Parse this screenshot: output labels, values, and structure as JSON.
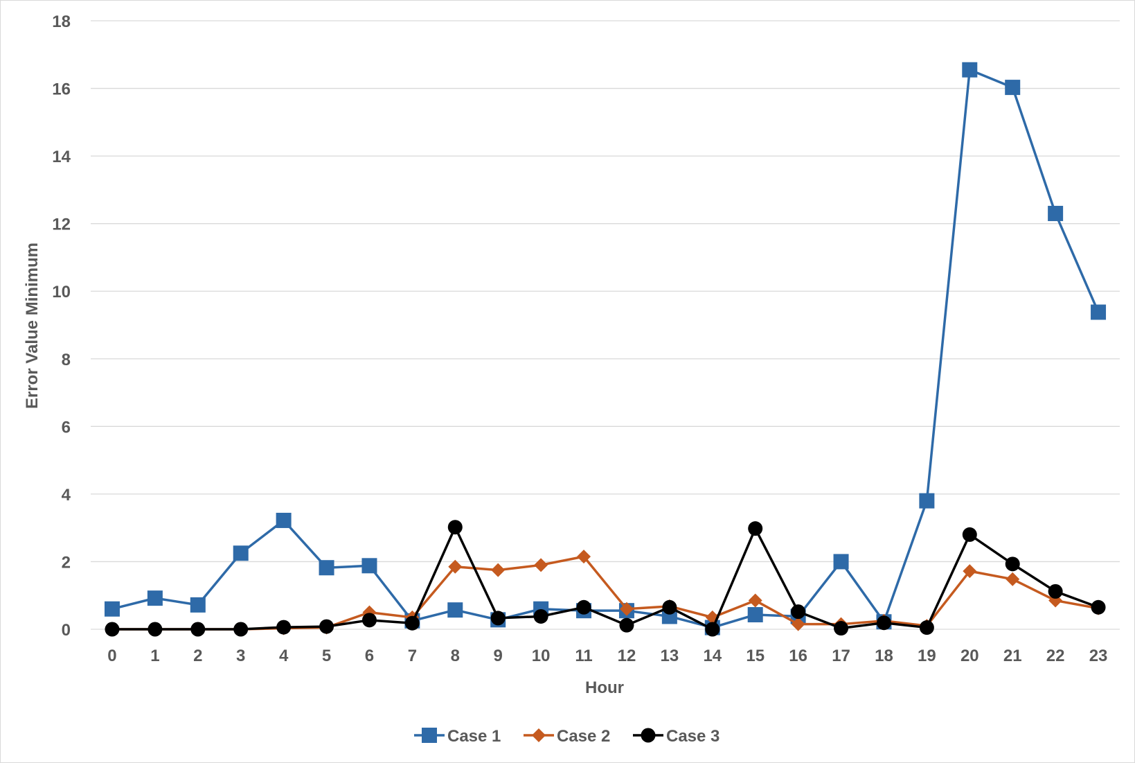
{
  "chart_data": {
    "type": "line",
    "title": "",
    "xlabel": "Hour",
    "ylabel": "Error Value Minimum",
    "categories": [
      "0",
      "1",
      "2",
      "3",
      "4",
      "5",
      "6",
      "7",
      "8",
      "9",
      "10",
      "11",
      "12",
      "13",
      "14",
      "15",
      "16",
      "17",
      "18",
      "19",
      "20",
      "21",
      "22",
      "23"
    ],
    "ylim": [
      0,
      18
    ],
    "yticks": [
      0,
      2,
      4,
      6,
      8,
      10,
      12,
      14,
      16,
      18
    ],
    "grid": true,
    "legend_position": "bottom",
    "series": [
      {
        "name": "Case 1",
        "color": "#2e6aa8",
        "marker": "square",
        "values": [
          0.6,
          0.92,
          0.72,
          2.25,
          3.22,
          1.82,
          1.88,
          0.25,
          0.57,
          0.28,
          0.6,
          0.55,
          0.55,
          0.38,
          0.05,
          0.43,
          0.38,
          2.0,
          0.22,
          3.8,
          16.55,
          16.03,
          12.3,
          9.38
        ]
      },
      {
        "name": "Case 2",
        "color": "#c55a1f",
        "marker": "diamond",
        "values": [
          0.0,
          0.0,
          0.0,
          0.0,
          0.03,
          0.05,
          0.5,
          0.35,
          1.85,
          1.75,
          1.9,
          2.15,
          0.6,
          0.68,
          0.35,
          0.85,
          0.15,
          0.15,
          0.25,
          0.1,
          1.72,
          1.48,
          0.85,
          0.62
        ]
      },
      {
        "name": "Case 3",
        "color": "#000000",
        "marker": "circle",
        "values": [
          0.0,
          0.0,
          0.0,
          0.0,
          0.06,
          0.08,
          0.27,
          0.18,
          3.02,
          0.33,
          0.38,
          0.65,
          0.12,
          0.65,
          0.0,
          2.98,
          0.52,
          0.03,
          0.19,
          0.05,
          2.8,
          1.93,
          1.12,
          0.65
        ]
      }
    ]
  }
}
